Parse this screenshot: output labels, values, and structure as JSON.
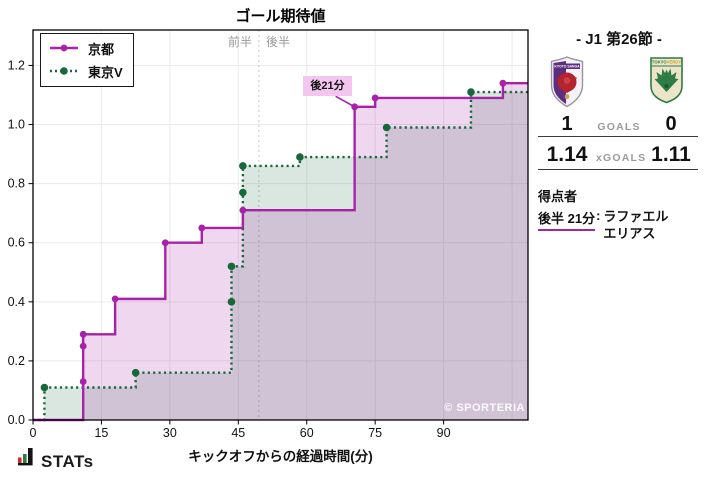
{
  "branding": {
    "watermark": "© SPORTERIA",
    "logo_text": "STATs"
  },
  "chart_data": {
    "type": "line",
    "subtype": "step",
    "title": "ゴール期待値",
    "xlabel": "キックオフからの経過時間(分)",
    "x_ticks": [
      0,
      15,
      30,
      45,
      60,
      75,
      90
    ],
    "x_grid_extra": [
      105
    ],
    "y_ticks": [
      0.0,
      0.2,
      0.4,
      0.6,
      0.8,
      1.0,
      1.2
    ],
    "xlim": [
      0,
      108.5
    ],
    "ylim": [
      0,
      1.32
    ],
    "grid": true,
    "legend_position": "upper-left",
    "halftime_x": 49.5,
    "half_labels": {
      "first_half": "前半",
      "second_half": "後半"
    },
    "annotation": {
      "text": "後21分",
      "x": 70.5,
      "y": 1.06
    },
    "series": [
      {
        "name": "京都",
        "color": "#A822A8",
        "fill": "rgba(168,34,168,0.18)",
        "style": "solid",
        "final_xg": 1.14,
        "points": [
          [
            0,
            0
          ],
          [
            11,
            0.13
          ],
          [
            11,
            0.25
          ],
          [
            11,
            0.29
          ],
          [
            18,
            0.41
          ],
          [
            29,
            0.6
          ],
          [
            37,
            0.65
          ],
          [
            46,
            0.71
          ],
          [
            70.5,
            1.06
          ],
          [
            75,
            1.09
          ],
          [
            103,
            1.14
          ],
          [
            108.5,
            1.14
          ]
        ]
      },
      {
        "name": "東京V",
        "color": "#17693C",
        "fill": "rgba(23,105,60,0.16)",
        "style": "dotted",
        "final_xg": 1.11,
        "points": [
          [
            0,
            0
          ],
          [
            2.5,
            0.11
          ],
          [
            22.5,
            0.16
          ],
          [
            43.5,
            0.4
          ],
          [
            43.5,
            0.52
          ],
          [
            46,
            0.77
          ],
          [
            46,
            0.86
          ],
          [
            58.5,
            0.89
          ],
          [
            77.5,
            0.99
          ],
          [
            96,
            1.11
          ],
          [
            108.5,
            1.11
          ]
        ]
      }
    ]
  },
  "panel": {
    "heading": "- J1 第26節 -",
    "goals_label": "GOALS",
    "xgoals_label": "xGOALS",
    "home": {
      "name": "京都",
      "goals": "1",
      "xgoals": "1.14"
    },
    "away": {
      "name": "東京V",
      "goals": "0",
      "xgoals": "1.11"
    },
    "scorers_heading": "得点者",
    "scorer": {
      "time": "後半 21分",
      "colon": ":",
      "name_line1": "ラファエル",
      "name_line2": "エリアス"
    }
  }
}
